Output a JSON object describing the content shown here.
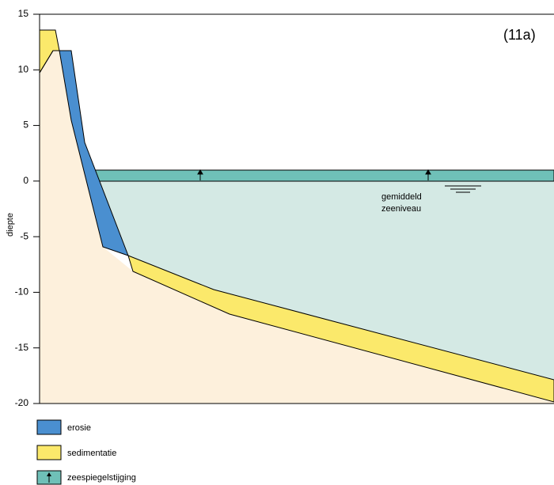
{
  "figure_label": "(11a)",
  "y_axis": {
    "label": "diepte",
    "ticks": [
      15,
      10,
      5,
      0,
      -5,
      -10,
      -15,
      -20
    ]
  },
  "annotation": [
    "gemiddeld",
    "zeeniveau"
  ],
  "legend": [
    "erosie",
    "sedimentatie",
    "zeespiegelstijging"
  ]
}
